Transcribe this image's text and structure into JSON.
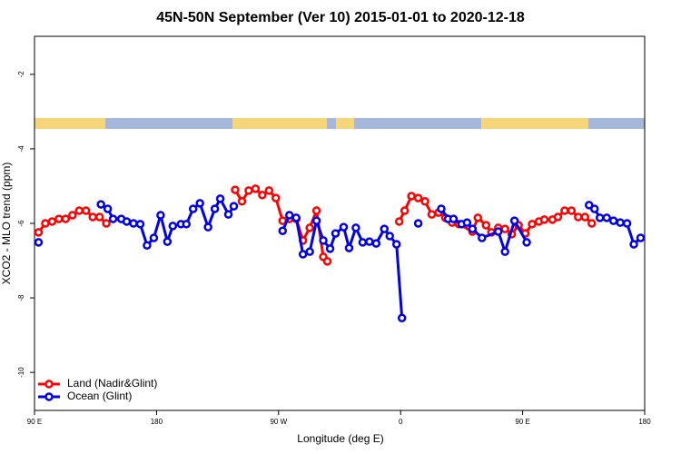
{
  "chart_data": {
    "type": "line",
    "title": "45N-50N September (Ver 10)   2015-01-01 to 2020-12-18",
    "x_label": "Longitude (deg E)",
    "y_label": "XCO2 - MLO trend (ppm)",
    "xlim": [
      90,
      540
    ],
    "xticks": [
      {
        "value": 90,
        "label": "90 E"
      },
      {
        "value": 180,
        "label": "180"
      },
      {
        "value": 270,
        "label": "90 W"
      },
      {
        "value": 360,
        "label": "0"
      },
      {
        "value": 450,
        "label": "90 E"
      },
      {
        "value": 540,
        "label": "180"
      }
    ],
    "ylim": [
      -11.02,
      -0.98
    ],
    "yticks": [
      -2,
      -4,
      -6,
      -8,
      -10
    ],
    "legend": "bottom-left",
    "series": [
      {
        "name": "Land (Nadir&Glint)",
        "color": "#ff0000",
        "x": [
          93,
          98,
          103,
          108,
          113,
          118,
          123,
          128,
          133,
          138,
          143,
          190,
          238,
          243,
          248,
          253,
          258,
          263,
          268,
          273,
          278,
          283,
          288,
          293,
          298,
          303,
          306,
          380,
          359,
          363,
          368,
          373,
          378,
          383,
          388,
          393,
          398,
          403,
          413,
          417,
          423,
          427,
          432,
          437,
          442,
          447,
          452,
          457,
          462,
          466,
          472,
          476,
          481,
          486,
          491,
          496,
          501
        ],
        "values": [
          -6.24,
          -6.0,
          -5.95,
          -5.88,
          -5.88,
          -5.78,
          -5.66,
          -5.66,
          -5.83,
          -5.83,
          -6.0,
          null,
          -5.1,
          -5.41,
          -5.12,
          -5.07,
          -5.24,
          -5.12,
          -5.32,
          -5.93,
          -5.88,
          -5.88,
          -6.46,
          -6.12,
          -5.66,
          -6.9,
          -7.02,
          null,
          -5.95,
          -5.66,
          -5.27,
          -5.32,
          -5.41,
          -5.76,
          -5.71,
          -5.85,
          -5.98,
          -6.02,
          -6.22,
          -5.85,
          -6.05,
          -6.24,
          -6.12,
          -6.15,
          -6.29,
          -6.05,
          -6.27,
          -6.02,
          -5.95,
          -5.9,
          -5.9,
          -5.83,
          -5.66,
          -5.66,
          -5.83,
          -5.83,
          -6.0
        ]
      },
      {
        "name": "Ocean (Glint)",
        "color": "#0000ee",
        "x": [
          93,
          100,
          139,
          144,
          148,
          154,
          158,
          163,
          168,
          173,
          178,
          183,
          188,
          192,
          198,
          202,
          207,
          212,
          218,
          223,
          227,
          233,
          237,
          270,
          273,
          278,
          283,
          288,
          293,
          298,
          303,
          308,
          312,
          318,
          322,
          327,
          332,
          337,
          342,
          348,
          352,
          357,
          361,
          365,
          373,
          376,
          390,
          395,
          399,
          405,
          409,
          413,
          420,
          432,
          437,
          444,
          453,
          480,
          499,
          503,
          507,
          512,
          517,
          522,
          527,
          532,
          537
        ],
        "values": [
          -6.51,
          null,
          -5.49,
          -5.61,
          -5.88,
          -5.88,
          -5.95,
          -6.0,
          -6.02,
          -6.59,
          -6.39,
          -5.78,
          -6.49,
          -6.07,
          -6.02,
          -6.02,
          -5.61,
          -5.46,
          -6.1,
          -5.61,
          -5.34,
          -5.76,
          -5.54,
          null,
          -6.2,
          -5.78,
          -5.85,
          -6.83,
          -6.76,
          -5.93,
          -6.46,
          -6.68,
          -6.27,
          -6.1,
          -6.66,
          -6.12,
          -6.51,
          -6.49,
          -6.54,
          -6.15,
          -6.34,
          -6.56,
          -8.54,
          null,
          -6.0,
          null,
          -5.61,
          -5.88,
          -5.88,
          -6.02,
          -5.98,
          -6.15,
          -6.39,
          -6.22,
          -6.76,
          -5.93,
          -6.51,
          null,
          -5.51,
          -5.61,
          -5.85,
          -5.85,
          -5.93,
          -5.98,
          -6.0,
          -6.56,
          -6.39
        ]
      }
    ]
  }
}
